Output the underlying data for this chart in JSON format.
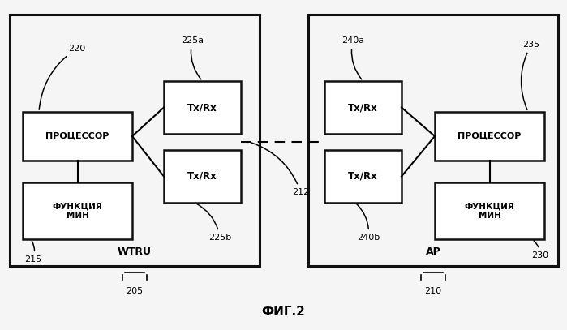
{
  "fig_title": "ФИГ.2",
  "bg_color": "#f5f5f5",
  "box_fc": "#ffffff",
  "ec": "#111111",
  "lw_inner": 1.8,
  "lw_outer": 2.2,
  "wtru_label": "WTRU",
  "ap_label": "AP",
  "label_205": "205",
  "label_210": "210",
  "label_220": "220",
  "label_215": "215",
  "label_225a": "225a",
  "label_225b": "225b",
  "label_240a": "240a",
  "label_240b": "240b",
  "label_235": "235",
  "label_230": "230",
  "label_212": "212",
  "proc_label": "ПРОЦЕССОР",
  "min_label": "ФУНКЦИЯ\nМИН",
  "txrx_label": "Tx/Rx"
}
